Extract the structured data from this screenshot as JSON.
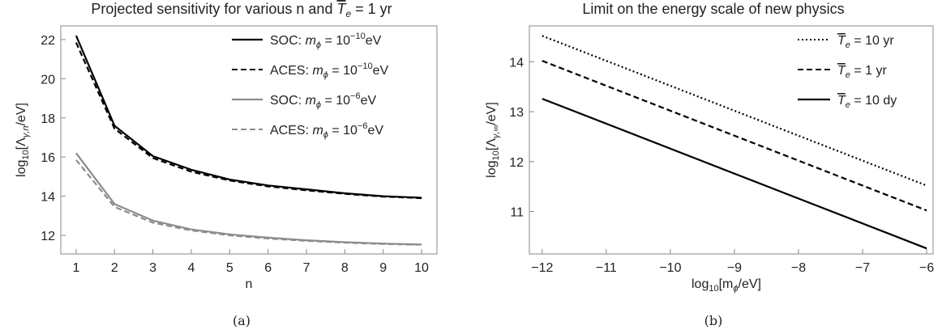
{
  "chart_data": [
    {
      "type": "line",
      "title": "Projected sensitivity for various n and T̅ₑ = 1 yr",
      "title_parts": {
        "prefix": "Projected sensitivity for various n and ",
        "t_symbol": "T",
        "e_sub": "e",
        "suffix": " = 1 yr"
      },
      "xlabel": "n",
      "ylabel": "log₁₀[Λγ,n/eV]",
      "ylabel_parts": {
        "lead": "log",
        "sub1": "10",
        "open": "[Λ",
        "sub2": "γ,n",
        "close": "/eV]"
      },
      "xlim": [
        0.6,
        10.4
      ],
      "ylim": [
        11.05,
        22.7
      ],
      "x_ticks": [
        1,
        2,
        3,
        4,
        5,
        6,
        7,
        8,
        9,
        10
      ],
      "y_ticks": [
        12,
        14,
        16,
        18,
        20,
        22
      ],
      "grid": false,
      "legend_position": "top-right",
      "caption": "(a)",
      "x": [
        1,
        2,
        3,
        4,
        5,
        6,
        7,
        8,
        9,
        10
      ],
      "series": [
        {
          "name": "SOC: mϕ = 10⁻¹⁰eV",
          "label_parts": {
            "lead": "SOC: ",
            "m": "m",
            "phi": "ϕ",
            "eq": " = 10",
            "exp": "−10",
            "unit": "eV"
          },
          "color": "#000000",
          "dash": "solid",
          "values": [
            22.2,
            17.6,
            16.05,
            15.35,
            14.85,
            14.55,
            14.35,
            14.15,
            14.0,
            13.92
          ]
        },
        {
          "name": "ACES: mϕ = 10⁻¹⁰eV",
          "label_parts": {
            "lead": "ACES: ",
            "m": "m",
            "phi": "ϕ",
            "eq": " = 10",
            "exp": "−10",
            "unit": "eV"
          },
          "color": "#000000",
          "dash": "dashed",
          "values": [
            21.85,
            17.45,
            15.95,
            15.25,
            14.8,
            14.5,
            14.3,
            14.12,
            13.98,
            13.9
          ]
        },
        {
          "name": "SOC: mϕ = 10⁻⁶eV",
          "label_parts": {
            "lead": "SOC: ",
            "m": "m",
            "phi": "ϕ",
            "eq": " = 10",
            "exp": "−6",
            "unit": "eV"
          },
          "color": "#8c8c8c",
          "dash": "solid",
          "values": [
            16.2,
            13.6,
            12.75,
            12.3,
            12.05,
            11.88,
            11.75,
            11.65,
            11.58,
            11.53
          ]
        },
        {
          "name": "ACES: mϕ = 10⁻⁶eV",
          "label_parts": {
            "lead": "ACES: ",
            "m": "m",
            "phi": "ϕ",
            "eq": " = 10",
            "exp": "−6",
            "unit": "eV"
          },
          "color": "#8c8c8c",
          "dash": "dashed",
          "values": [
            15.85,
            13.45,
            12.65,
            12.25,
            12.0,
            11.84,
            11.72,
            11.63,
            11.56,
            11.52
          ]
        }
      ]
    },
    {
      "type": "line",
      "title": "Limit on the energy scale of new physics",
      "xlabel": "log₁₀[mϕ/eV]",
      "xlabel_parts": {
        "lead": "log",
        "sub1": "10",
        "open": "[m",
        "sub2": "ϕ",
        "close": "/eV]"
      },
      "ylabel": "log₁₀[Λγ,∞/eV]",
      "ylabel_parts": {
        "lead": "log",
        "sub1": "10",
        "open": "[Λ",
        "sub2": "γ,∞",
        "close": "/eV]"
      },
      "xlim": [
        -12.2,
        -5.9
      ],
      "ylim": [
        10.15,
        14.72
      ],
      "x_ticks": [
        -12,
        -11,
        -10,
        -9,
        -8,
        -7,
        -6
      ],
      "x_tick_labels": [
        "−12",
        "−11",
        "−10",
        "−9",
        "−8",
        "−7",
        "−6"
      ],
      "y_ticks": [
        11,
        12,
        13,
        14
      ],
      "grid": false,
      "legend_position": "top-right",
      "caption": "(b)",
      "x": [
        -12,
        -6
      ],
      "series": [
        {
          "name": "T̅ₑ = 10 yr",
          "label_parts": {
            "t": "T",
            "sub": "e",
            "value": " = 10 yr"
          },
          "color": "#000000",
          "dash": "dotted",
          "values": [
            14.52,
            11.52
          ]
        },
        {
          "name": "T̅ₑ = 1 yr",
          "label_parts": {
            "t": "T",
            "sub": "e",
            "value": " = 1 yr"
          },
          "color": "#000000",
          "dash": "dashed",
          "values": [
            14.02,
            11.02
          ]
        },
        {
          "name": "T̅ₑ = 10 dy",
          "label_parts": {
            "t": "T",
            "sub": "e",
            "value": " = 10 dy"
          },
          "color": "#000000",
          "dash": "solid",
          "values": [
            13.26,
            10.26
          ]
        }
      ]
    }
  ]
}
